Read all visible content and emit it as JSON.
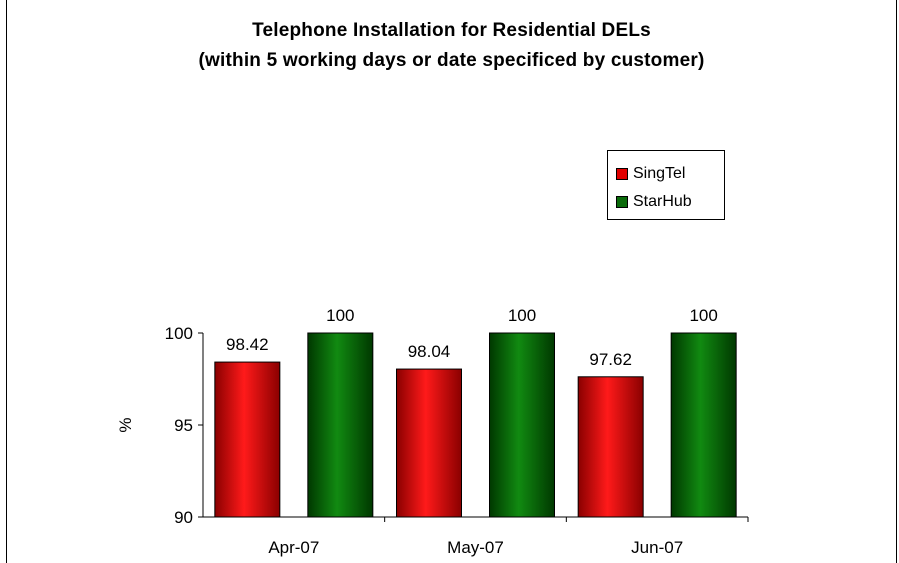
{
  "chart_data": {
    "type": "bar",
    "title": "Telephone Installation for Residential DELs",
    "subtitle": "(within 5 working days or date specificed by customer)",
    "xlabel": "",
    "ylabel": "%",
    "categories": [
      "Apr-07",
      "May-07",
      "Jun-07"
    ],
    "series": [
      {
        "name": "SingTel",
        "values": [
          98.42,
          98.04,
          97.62
        ],
        "labels": [
          "98.42",
          "98.04",
          "97.62"
        ],
        "color": "#e00000"
      },
      {
        "name": "StarHub",
        "values": [
          100,
          100,
          100
        ],
        "labels": [
          "100",
          "100",
          "100"
        ],
        "color": "#0a6a0a"
      }
    ],
    "ylim": [
      90,
      100
    ],
    "yticks": [
      "90",
      "95",
      "100"
    ],
    "grid": false,
    "legend": "top-right"
  }
}
